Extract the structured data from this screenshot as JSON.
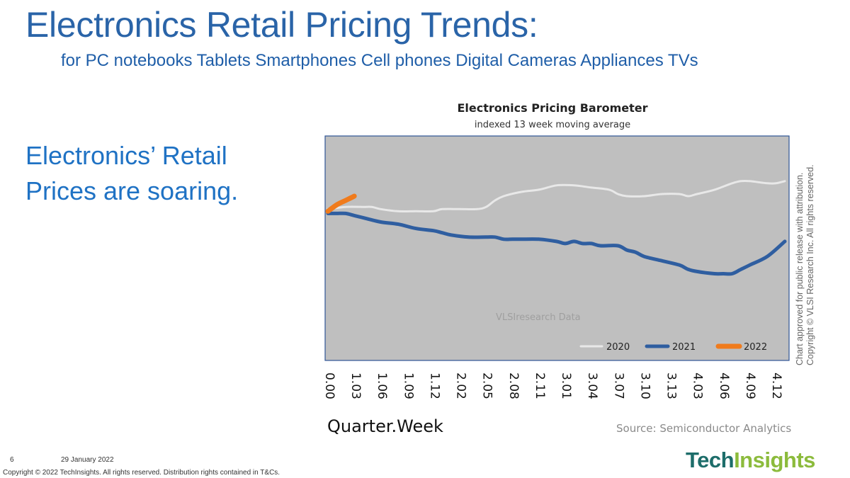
{
  "slide": {
    "title": "Electronics Retail Pricing Trends:",
    "subtitle": "for PC notebooks Tablets Smartphones Cell phones Digital Cameras Appliances TVs",
    "lead_text": "Electronics’ Retail Prices are soaring.",
    "source": "Source: Semiconductor Analytics",
    "side_copyright": "Chart approved for public release with attribution. Copyright © VLSI Research Inc. All rights reserved.",
    "footer": {
      "page_number": "6",
      "date": "29 January 2022",
      "copyright": "Copyright © 2022 TechInsights. All rights reserved. Distribution rights contained in T&Cs."
    },
    "logo": {
      "part1": "Tech",
      "part2": "Insights"
    }
  },
  "chart_data": {
    "type": "line",
    "title": "Electronics Pricing Barometer",
    "subtitle": "indexed 13 week moving average",
    "xlabel": "Quarter.Week",
    "ylabel": "",
    "watermark": "VLSIresearch Data",
    "x_tick_labels": [
      "0.00",
      "1.03",
      "1.06",
      "1.09",
      "1.12",
      "2.02",
      "2.05",
      "2.08",
      "2.11",
      "3.01",
      "3.04",
      "3.07",
      "3.10",
      "3.13",
      "4.03",
      "4.06",
      "4.09",
      "4.12"
    ],
    "x_range": [
      0,
      52
    ],
    "y_range": [
      0,
      100
    ],
    "grid": false,
    "plot_background": "#bfbfbf",
    "legend_position": "bottom-right",
    "series": [
      {
        "name": "2020",
        "color": "#e8e8e8",
        "line_width": 3,
        "points": [
          [
            0,
            68
          ],
          [
            2,
            69
          ],
          [
            4,
            69
          ],
          [
            5,
            69
          ],
          [
            6,
            68
          ],
          [
            8,
            67
          ],
          [
            10,
            67
          ],
          [
            12,
            67
          ],
          [
            13,
            68
          ],
          [
            15,
            68
          ],
          [
            17,
            68
          ],
          [
            18,
            69
          ],
          [
            19,
            72
          ],
          [
            20,
            74
          ],
          [
            22,
            76
          ],
          [
            24,
            77
          ],
          [
            26,
            79
          ],
          [
            28,
            79
          ],
          [
            30,
            78
          ],
          [
            32,
            77
          ],
          [
            33,
            75
          ],
          [
            34,
            74
          ],
          [
            36,
            74
          ],
          [
            38,
            75
          ],
          [
            40,
            75
          ],
          [
            41,
            74
          ],
          [
            42,
            75
          ],
          [
            44,
            77
          ],
          [
            46,
            80
          ],
          [
            47,
            81
          ],
          [
            48,
            81
          ],
          [
            50,
            80
          ],
          [
            51,
            80
          ],
          [
            52,
            81
          ]
        ]
      },
      {
        "name": "2021",
        "color": "#2f5ea0",
        "line_width": 5,
        "points": [
          [
            0,
            66
          ],
          [
            1,
            66
          ],
          [
            2,
            66
          ],
          [
            3,
            65
          ],
          [
            4,
            64
          ],
          [
            6,
            62
          ],
          [
            8,
            61
          ],
          [
            10,
            59
          ],
          [
            12,
            58
          ],
          [
            13,
            57
          ],
          [
            14,
            56
          ],
          [
            16,
            55
          ],
          [
            18,
            55
          ],
          [
            19,
            55
          ],
          [
            20,
            54
          ],
          [
            21,
            54
          ],
          [
            22,
            54
          ],
          [
            24,
            54
          ],
          [
            26,
            53
          ],
          [
            27,
            52
          ],
          [
            28,
            53
          ],
          [
            29,
            52
          ],
          [
            30,
            52
          ],
          [
            31,
            51
          ],
          [
            33,
            51
          ],
          [
            34,
            49
          ],
          [
            35,
            48
          ],
          [
            36,
            46
          ],
          [
            38,
            44
          ],
          [
            40,
            42
          ],
          [
            41,
            40
          ],
          [
            42,
            39
          ],
          [
            44,
            38
          ],
          [
            45,
            38
          ],
          [
            46,
            38
          ],
          [
            47,
            40
          ],
          [
            48,
            42
          ],
          [
            50,
            46
          ],
          [
            52,
            53
          ]
        ]
      },
      {
        "name": "2022",
        "color": "#f07b1c",
        "line_width": 7,
        "points": [
          [
            0,
            67
          ],
          [
            1,
            70
          ],
          [
            2,
            72
          ],
          [
            3,
            74
          ]
        ]
      }
    ]
  }
}
